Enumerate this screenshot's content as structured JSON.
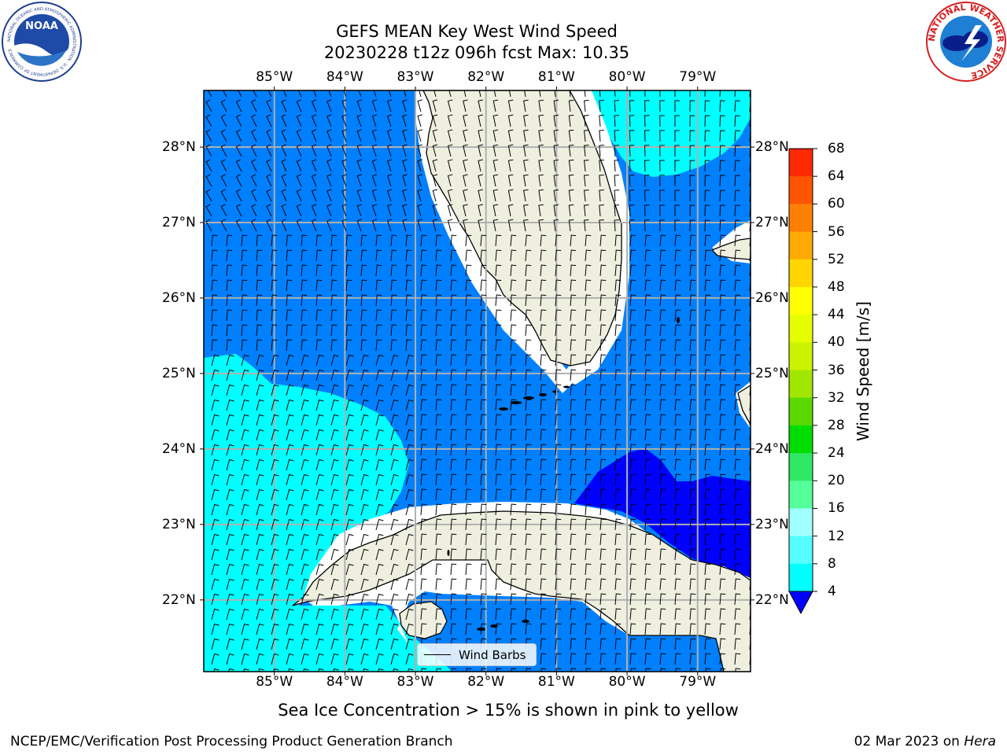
{
  "title": {
    "line1": "GEFS MEAN Key West Wind Speed",
    "line2": "20230228 t12z 096h fcst   Max: 10.35"
  },
  "axes": {
    "lon_labels": [
      "85°W",
      "84°W",
      "83°W",
      "82°W",
      "81°W",
      "80°W",
      "79°W"
    ],
    "lat_labels": [
      "28°N",
      "27°N",
      "26°N",
      "25°N",
      "24°N",
      "23°N",
      "22°N"
    ],
    "lon_range": [
      -86.0,
      -78.25
    ],
    "lat_range": [
      21.05,
      28.75
    ]
  },
  "colorbar": {
    "title": "Wind Speed [m/s]",
    "ticks": [
      "68",
      "64",
      "60",
      "56",
      "52",
      "48",
      "44",
      "40",
      "36",
      "32",
      "28",
      "24",
      "20",
      "16",
      "12",
      "8",
      "4"
    ],
    "colors": [
      "#ff0000",
      "#ff2a00",
      "#ff5500",
      "#ff8000",
      "#ffaa00",
      "#ffd500",
      "#ffff00",
      "#e6ff00",
      "#ccf200",
      "#a0e600",
      "#5ad900",
      "#00dd00",
      "#2ee866",
      "#55ff99",
      "#a0ffff",
      "#55ffff",
      "#00ffff",
      "#0080ff"
    ],
    "extend": "min"
  },
  "legend": {
    "label": "Wind Barbs"
  },
  "footnote": "Sea Ice Concentration > 15% is shown in pink to yellow",
  "footer": {
    "left": "NCEP/EMC/Verification Post Processing Product Generation Branch",
    "date": "02 Mar 2023 on",
    "host": "Hera"
  },
  "logos": [
    {
      "name": "noaa-logo",
      "text": "NOAA",
      "ring_text": "NATIONAL OCEANIC AND ATMOSPHERIC ADMINISTRATION · U.S. DEPARTMENT OF COMMERCE"
    },
    {
      "name": "nws-logo",
      "ring_text": "NATIONAL WEATHER SERVICE"
    }
  ],
  "colors": {
    "land": "#efefdf",
    "wind_4_8": "#0080ff",
    "wind_8_12": "#00ffff",
    "wind_below_4": "#0000ff",
    "grid": "#b0b0b0"
  }
}
